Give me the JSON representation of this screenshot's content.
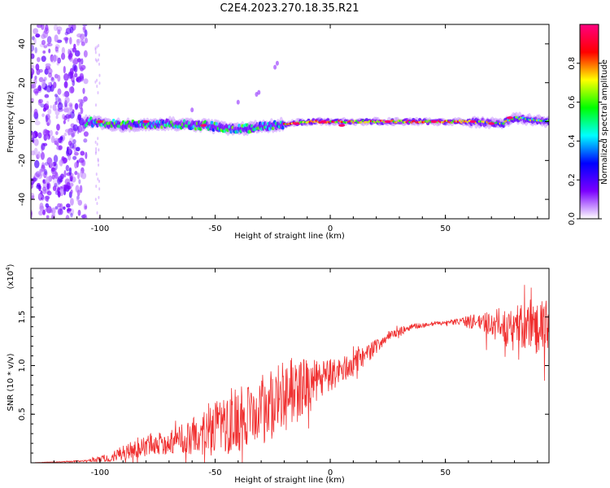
{
  "figure": {
    "title": "C2E4.2023.270.18.35.R21"
  },
  "chart_data": [
    {
      "type": "heatmap",
      "title": "C2E4.2023.270.18.35.R21",
      "xlabel": "Height of straight line (km)",
      "ylabel": "Frequency (Hz)",
      "xlim": [
        -130,
        95
      ],
      "ylim": [
        -50,
        50
      ],
      "xticks": [
        -100,
        -50,
        0,
        50
      ],
      "yticks": [
        -40,
        -20,
        0,
        20,
        40
      ],
      "colorbar": {
        "label": "Normalized spectral amplitude",
        "range": [
          0,
          1
        ],
        "ticks": [
          "0.0",
          "0.2",
          "0.4",
          "0.6",
          "0.8"
        ],
        "colormap": [
          "#ffffff",
          "#7b00ff",
          "#0000ff",
          "#00ffff",
          "#00ff00",
          "#ffff00",
          "#ff0000",
          "#ff0080"
        ]
      },
      "description_points": {
        "noise_region_x": [
          -130,
          -106
        ],
        "band_center_hz": [
          [
            -105,
            0
          ],
          [
            -90,
            -2
          ],
          [
            -70,
            -1
          ],
          [
            -55,
            -2
          ],
          [
            -40,
            -4
          ],
          [
            -25,
            -2
          ],
          [
            -10,
            0
          ],
          [
            0,
            0
          ],
          [
            20,
            0
          ],
          [
            40,
            0
          ],
          [
            60,
            0
          ],
          [
            75,
            -1
          ],
          [
            80,
            2
          ],
          [
            95,
            0
          ]
        ]
      },
      "grid": false
    },
    {
      "type": "line",
      "xlabel": "Height of straight line (km)",
      "ylabel": "SNR (10 * v/v)",
      "yscale_label": "(x10",
      "yscale_exp": "4",
      "xlim": [
        -130,
        95
      ],
      "ylim": [
        0,
        2.0
      ],
      "xticks": [
        -100,
        -50,
        0,
        50
      ],
      "yticks": [
        0.5,
        1.0,
        1.5
      ],
      "ytick_labels": [
        "0.5",
        "1.0",
        "1.5"
      ],
      "color": "#f03030",
      "envelope_x": [
        -130,
        -105,
        -95,
        -85,
        -75,
        -65,
        -55,
        -45,
        -35,
        -25,
        -15,
        -5,
        5,
        15,
        25,
        35,
        45,
        55,
        65,
        75,
        85,
        95
      ],
      "envelope_mean": [
        0.0,
        0.02,
        0.06,
        0.15,
        0.2,
        0.24,
        0.3,
        0.4,
        0.5,
        0.6,
        0.75,
        0.85,
        0.95,
        1.1,
        1.3,
        1.4,
        1.43,
        1.45,
        1.45,
        1.42,
        1.4,
        1.38
      ],
      "envelope_amp": [
        0.0,
        0.01,
        0.05,
        0.1,
        0.12,
        0.15,
        0.22,
        0.35,
        0.35,
        0.38,
        0.35,
        0.2,
        0.15,
        0.1,
        0.05,
        0.03,
        0.02,
        0.03,
        0.1,
        0.18,
        0.25,
        0.3
      ],
      "grid": false
    }
  ]
}
